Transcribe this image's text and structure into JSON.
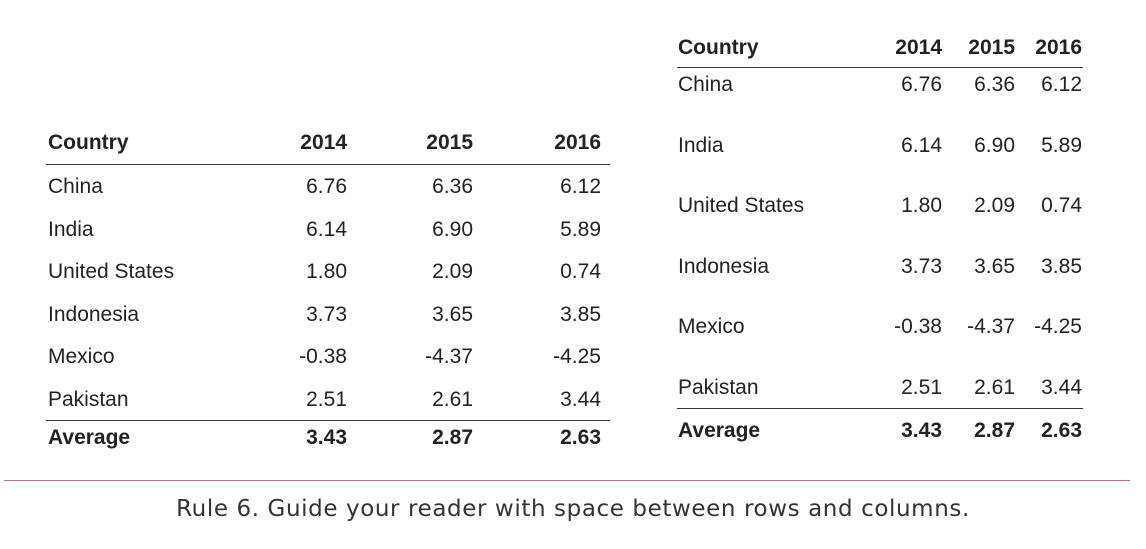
{
  "tables": {
    "header": {
      "country": "Country",
      "y2014": "2014",
      "y2015": "2015",
      "y2016": "2016"
    },
    "rows": [
      {
        "country": "China",
        "y2014": "6.76",
        "y2015": "6.36",
        "y2016": "6.12"
      },
      {
        "country": "India",
        "y2014": "6.14",
        "y2015": "6.90",
        "y2016": "5.89"
      },
      {
        "country": "United States",
        "y2014": "1.80",
        "y2015": "2.09",
        "y2016": "0.74"
      },
      {
        "country": "Indonesia",
        "y2014": "3.73",
        "y2015": "3.65",
        "y2016": "3.85"
      },
      {
        "country": "Mexico",
        "y2014": "-0.38",
        "y2015": "-4.37",
        "y2016": "-4.25"
      },
      {
        "country": "Pakistan",
        "y2014": "2.51",
        "y2015": "2.61",
        "y2016": "3.44"
      }
    ],
    "average": {
      "country": "Average",
      "y2014": "3.43",
      "y2015": "2.87",
      "y2016": "2.63"
    }
  },
  "caption": "Rule 6. Guide your reader with space between rows and columns.",
  "colors": {
    "divider": "#b5737b",
    "text": "#222222"
  }
}
